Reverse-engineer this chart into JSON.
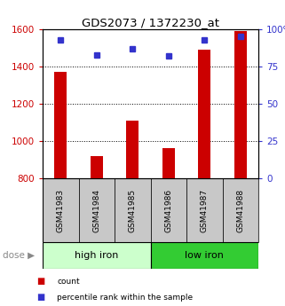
{
  "title": "GDS2073 / 1372230_at",
  "samples": [
    "GSM41983",
    "GSM41984",
    "GSM41985",
    "GSM41986",
    "GSM41987",
    "GSM41988"
  ],
  "counts": [
    1370,
    920,
    1110,
    960,
    1490,
    1590
  ],
  "percentiles": [
    93,
    83,
    87,
    82,
    93,
    95
  ],
  "ylim_left": [
    800,
    1600
  ],
  "ylim_right": [
    0,
    100
  ],
  "yticks_left": [
    800,
    1000,
    1200,
    1400,
    1600
  ],
  "yticks_right": [
    0,
    25,
    50,
    75,
    100
  ],
  "bar_color": "#cc0000",
  "dot_color": "#3333cc",
  "dose_groups": [
    {
      "label": "high iron",
      "indices": [
        0,
        1,
        2
      ],
      "color": "#ccffcc"
    },
    {
      "label": "low iron",
      "indices": [
        3,
        4,
        5
      ],
      "color": "#33cc33"
    }
  ],
  "label_bg_color": "#c8c8c8",
  "bar_width": 0.35,
  "left_tick_color": "#cc0000",
  "right_tick_color": "#3333cc",
  "legend_items": [
    {
      "label": "count",
      "color": "#cc0000"
    },
    {
      "label": "percentile rank within the sample",
      "color": "#3333cc"
    }
  ]
}
